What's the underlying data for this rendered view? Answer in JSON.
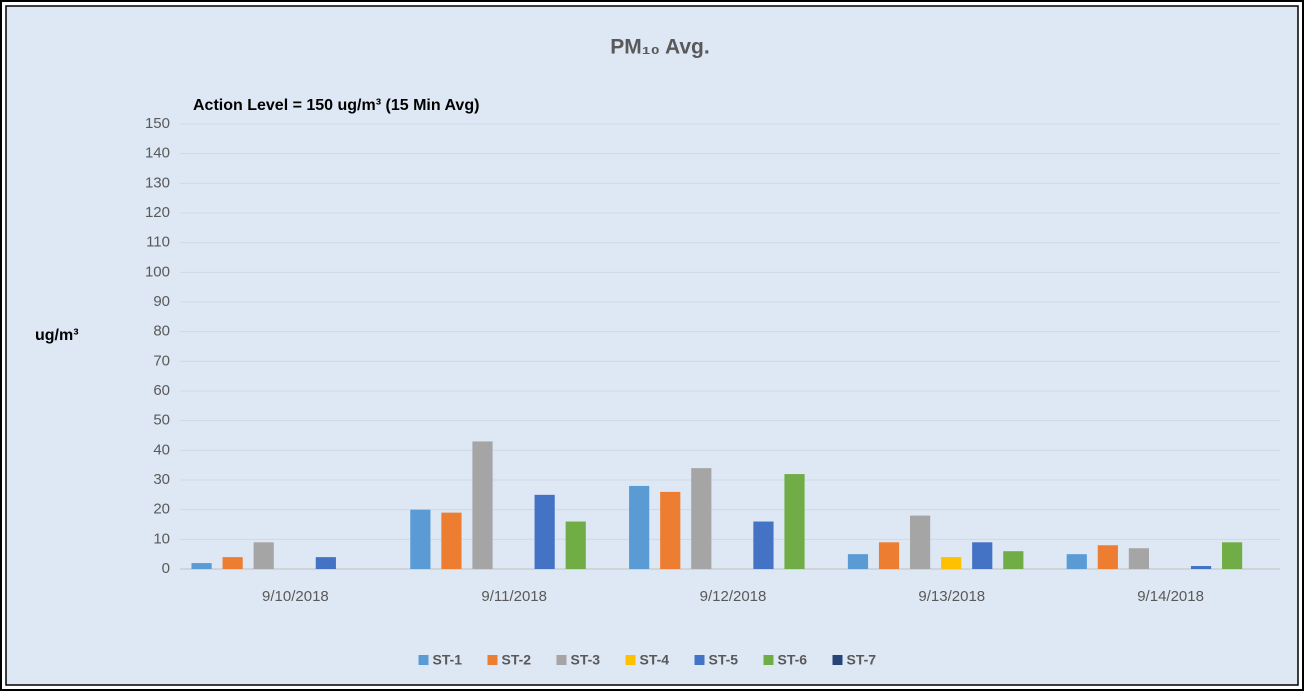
{
  "chart_data": {
    "type": "bar",
    "title": "PM₁₀ Avg.",
    "annotation": "Action Level = 150 ug/m³ (15 Min Avg)",
    "ylabel": "ug/m³",
    "categories": [
      "9/10/2018",
      "9/11/2018",
      "9/12/2018",
      "9/13/2018",
      "9/14/2018"
    ],
    "series": [
      {
        "name": "ST-1",
        "color": "#5b9bd5",
        "values": [
          2,
          20,
          28,
          5,
          5
        ]
      },
      {
        "name": "ST-2",
        "color": "#ed7d31",
        "values": [
          4,
          19,
          26,
          9,
          8
        ]
      },
      {
        "name": "ST-3",
        "color": "#a5a5a5",
        "values": [
          9,
          43,
          34,
          18,
          7
        ]
      },
      {
        "name": "ST-4",
        "color": "#ffc000",
        "values": [
          null,
          null,
          null,
          4,
          null
        ]
      },
      {
        "name": "ST-5",
        "color": "#4472c4",
        "values": [
          4,
          25,
          16,
          9,
          1
        ]
      },
      {
        "name": "ST-6",
        "color": "#70ad47",
        "values": [
          null,
          16,
          32,
          6,
          9
        ]
      },
      {
        "name": "ST-7",
        "color": "#264478",
        "values": [
          null,
          null,
          null,
          null,
          null
        ]
      }
    ],
    "ylim": [
      0,
      150
    ],
    "yticks": [
      0,
      10,
      20,
      30,
      40,
      50,
      60,
      70,
      80,
      90,
      100,
      110,
      120,
      130,
      140,
      150
    ],
    "grid": true,
    "legend": "bottom"
  }
}
